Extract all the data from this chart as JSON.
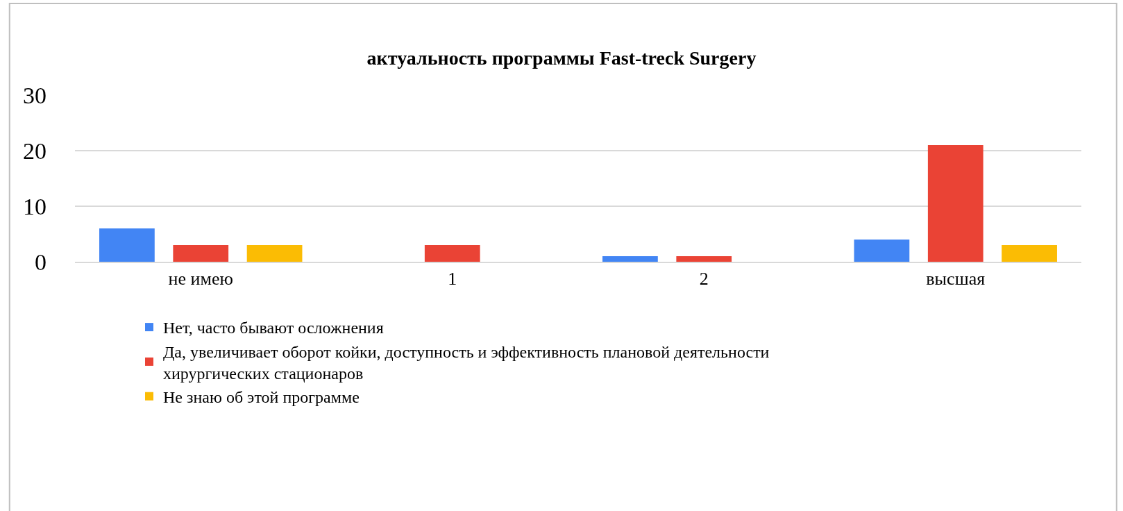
{
  "chart_data": {
    "type": "bar",
    "title": "актуальность программы Fast-treck Surgery",
    "categories": [
      "не имею",
      "1",
      "2",
      "высшая"
    ],
    "series": [
      {
        "name": "Нет, часто бывают осложнения",
        "color": "#4285f4",
        "values": [
          6,
          0,
          1,
          4
        ]
      },
      {
        "name": "Да, увеличивает оборот койки, доступность и эффективность плановой деятельности хирургических стационаров",
        "color": "#ea4335",
        "values": [
          3,
          3,
          1,
          21
        ]
      },
      {
        "name": "Не знаю об этой программе",
        "color": "#fbbc04",
        "values": [
          3,
          0,
          0,
          3
        ]
      }
    ],
    "ylim": [
      0,
      30
    ],
    "yticks": [
      0,
      10,
      20,
      30
    ],
    "grid": "y",
    "legend": "bottom"
  }
}
